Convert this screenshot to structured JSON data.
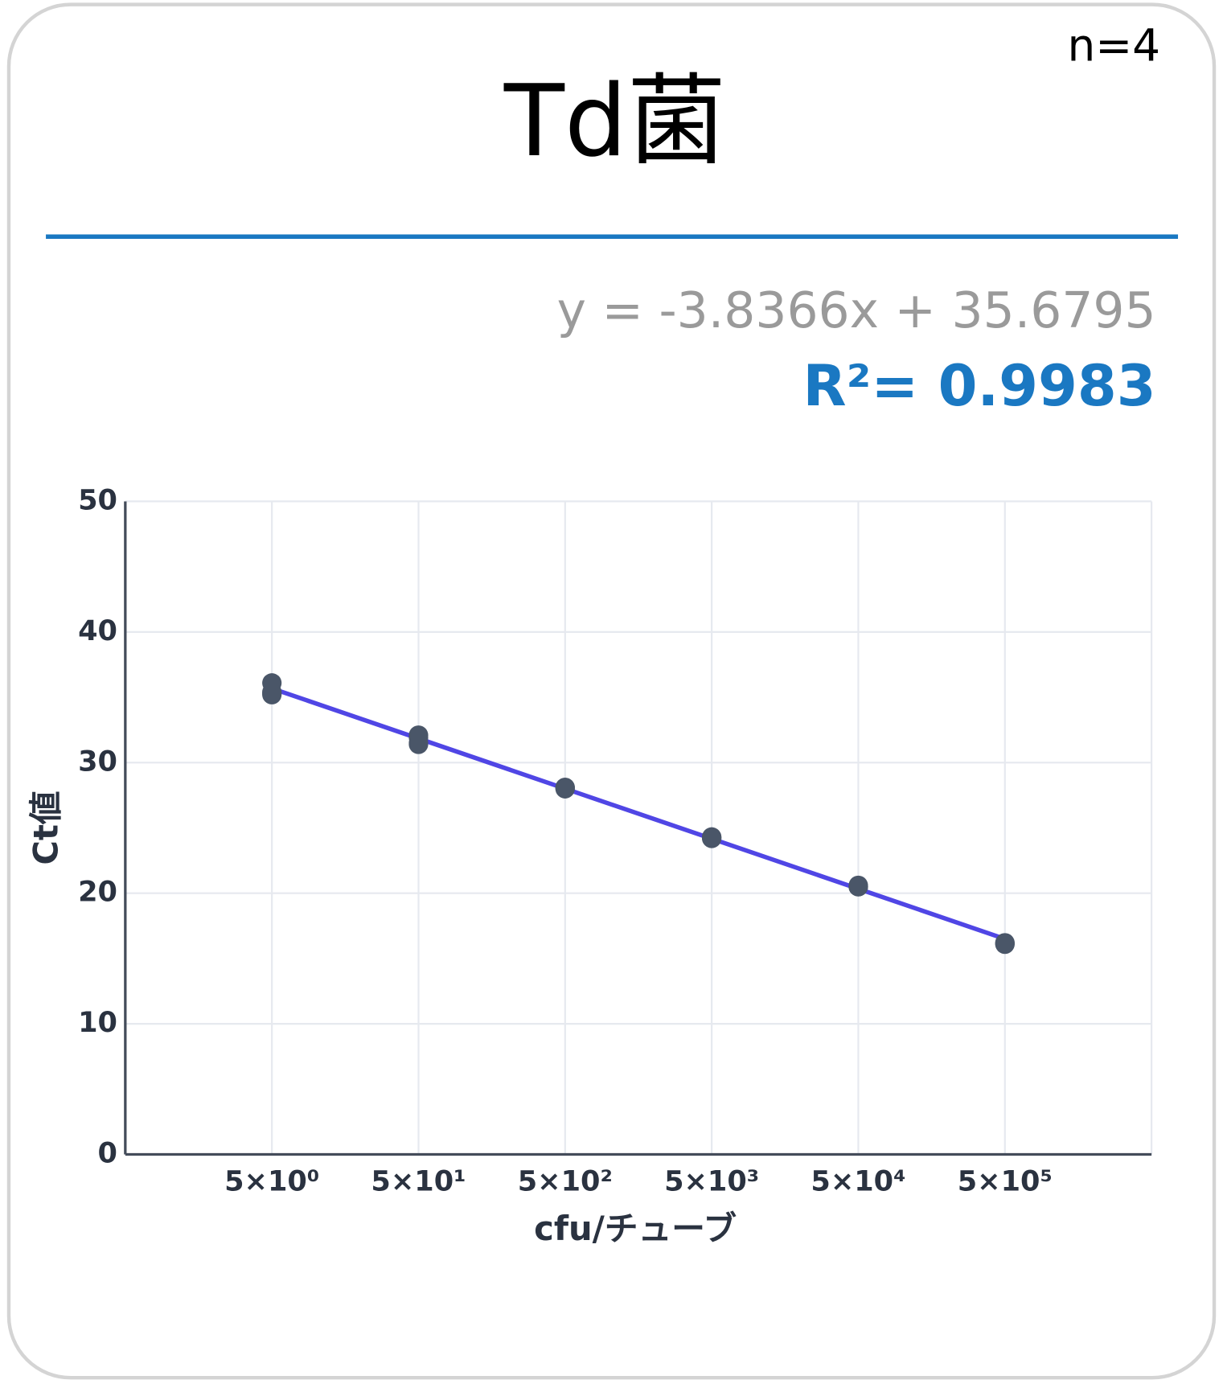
{
  "header": {
    "title": "Td菌",
    "sample_size": "n=4",
    "equation": "y = -3.8366x + 35.6795",
    "r_squared": "R²= 0.9983"
  },
  "chart_data": {
    "type": "scatter",
    "x_label": "cfu/チューブ",
    "y_label": "Ct値",
    "xlim": [
      -1,
      6
    ],
    "ylim": [
      0,
      50
    ],
    "xticks": [
      {
        "value": 0,
        "label": "5×10⁰"
      },
      {
        "value": 1,
        "label": "5×10¹"
      },
      {
        "value": 2,
        "label": "5×10²"
      },
      {
        "value": 3,
        "label": "5×10³"
      },
      {
        "value": 4,
        "label": "5×10⁴"
      },
      {
        "value": 5,
        "label": "5×10⁵"
      }
    ],
    "yticks": [
      0,
      10,
      20,
      30,
      40,
      50
    ],
    "grid": true,
    "series": [
      {
        "kind": "points",
        "color": "#4a5668",
        "x": [
          0,
          0,
          0,
          0,
          1,
          1,
          1,
          1,
          2,
          2,
          2,
          2,
          3,
          3,
          3,
          3,
          4,
          4,
          4,
          4,
          5,
          5,
          5,
          5
        ],
        "values": [
          36.1,
          35.4,
          35.2,
          35.3,
          32.1,
          31.9,
          31.4,
          31.5,
          28.1,
          28.0,
          28.0,
          28.1,
          24.3,
          24.2,
          24.3,
          24.2,
          20.5,
          20.5,
          20.6,
          20.5,
          16.2,
          16.1,
          16.2,
          16.1
        ]
      },
      {
        "kind": "line",
        "color": "#5046e5",
        "x": [
          0,
          5
        ],
        "values": [
          35.68,
          16.5
        ]
      }
    ]
  }
}
